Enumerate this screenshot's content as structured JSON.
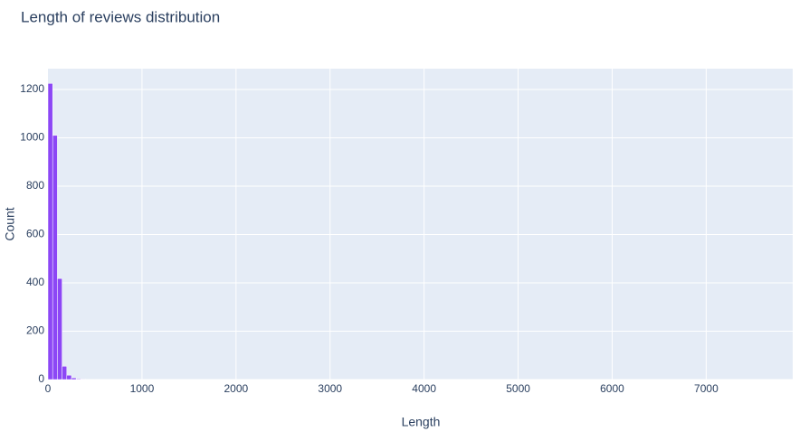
{
  "chart_data": {
    "type": "histogram",
    "title": "Length of reviews distribution",
    "x_label": "Length",
    "y_label": "Count",
    "bins": [
      0,
      50,
      100,
      150,
      200,
      250,
      300,
      350,
      400,
      450,
      500,
      550,
      1050,
      1100,
      1550,
      1600,
      4450,
      4500,
      4750,
      4800,
      7850,
      7900
    ],
    "counts": [
      1225,
      1010,
      418,
      55,
      18,
      7,
      3,
      2,
      1,
      0,
      1,
      0,
      1,
      0,
      1,
      0,
      1,
      0,
      1,
      0,
      1
    ],
    "color": "#8c47f5",
    "xlim": [
      0,
      7920
    ],
    "xticks": [
      0,
      1000,
      2000,
      3000,
      4000,
      5000,
      6000,
      7000
    ],
    "ylim": [
      0,
      1286
    ],
    "yticks": [
      0,
      200,
      400,
      600,
      800,
      1000,
      1200
    ],
    "grid": true
  }
}
